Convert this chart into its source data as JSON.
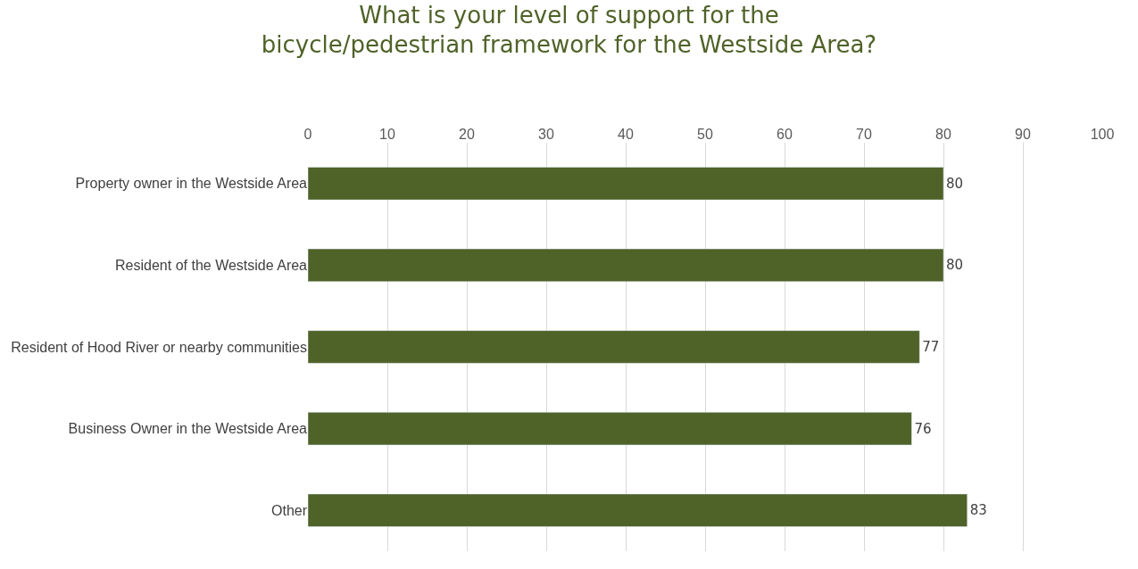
{
  "chart_data": {
    "type": "bar",
    "orientation": "horizontal",
    "title": "What is your level of support for the\nbicycle/pedestrian framework for the Westside Area?",
    "categories": [
      "Property owner in the Westside Area",
      "Resident of the Westside Area",
      "Resident of Hood River or nearby communities",
      "Business Owner in the Westside Area",
      "Other"
    ],
    "values": [
      80,
      80,
      77,
      76,
      83
    ],
    "color": "#4f6228",
    "xlim": [
      0,
      100
    ],
    "xticks": [
      0,
      10,
      20,
      30,
      40,
      50,
      60,
      70,
      80,
      90,
      100
    ],
    "grid": "x",
    "data_labels": true,
    "legend": false
  }
}
